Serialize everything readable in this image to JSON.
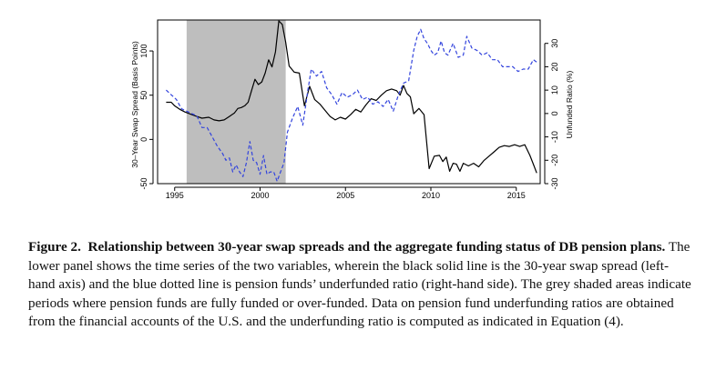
{
  "chart_data": {
    "type": "line",
    "title": "",
    "xlabel": "",
    "xlim": [
      1994.0,
      2016.4
    ],
    "xticks": [
      1995,
      2000,
      2005,
      2010,
      2015
    ],
    "xtick_labels": [
      "1995",
      "2000",
      "2005",
      "2010",
      "2015"
    ],
    "left_axis": {
      "label": "30–Year Swap Spread (Basis Points)",
      "ylim": [
        -50,
        135
      ],
      "ticks": [
        -50,
        0,
        50,
        100
      ],
      "tick_labels": [
        "-50",
        "0",
        "50",
        "100"
      ]
    },
    "right_axis": {
      "label": "Unfunded Ratio (%)",
      "ylim": [
        -30,
        40
      ],
      "ticks": [
        -30,
        -20,
        -10,
        0,
        10,
        20,
        30
      ],
      "tick_labels": [
        "-30",
        "-20",
        "-10",
        "0",
        "10",
        "20",
        "30"
      ]
    },
    "shaded_regions": [
      {
        "x0": 1995.7,
        "x1": 2001.5,
        "color": "#bebebe"
      }
    ],
    "series": [
      {
        "name": "30-year swap spread",
        "axis": "left",
        "color": "#000000",
        "style": "solid",
        "x": [
          1994.5,
          1994.8,
          1995.0,
          1995.3,
          1995.6,
          1996.0,
          1996.3,
          1996.6,
          1997.0,
          1997.3,
          1997.6,
          1997.9,
          1998.2,
          1998.5,
          1998.7,
          1998.9,
          1999.1,
          1999.3,
          1999.5,
          1999.7,
          1999.9,
          2000.1,
          2000.3,
          2000.5,
          2000.7,
          2000.9,
          2001.1,
          2001.3,
          2001.5,
          2001.7,
          2002.0,
          2002.3,
          2002.6,
          2002.9,
          2003.2,
          2003.5,
          2003.8,
          2004.1,
          2004.4,
          2004.7,
          2005.0,
          2005.3,
          2005.6,
          2005.9,
          2006.2,
          2006.5,
          2006.8,
          2007.1,
          2007.4,
          2007.7,
          2008.0,
          2008.2,
          2008.4,
          2008.6,
          2008.8,
          2009.0,
          2009.3,
          2009.6,
          2009.9,
          2010.2,
          2010.5,
          2010.7,
          2010.9,
          2011.1,
          2011.3,
          2011.5,
          2011.7,
          2011.9,
          2012.2,
          2012.5,
          2012.8,
          2013.1,
          2013.4,
          2013.7,
          2014.0,
          2014.3,
          2014.6,
          2014.9,
          2015.2,
          2015.5,
          2015.8,
          2016.0,
          2016.2
        ],
        "values": [
          42,
          42,
          38,
          34,
          31,
          28,
          26,
          24,
          25,
          22,
          21,
          22,
          26,
          30,
          35,
          36,
          38,
          42,
          55,
          68,
          62,
          65,
          75,
          90,
          82,
          99,
          134,
          130,
          110,
          83,
          76,
          75,
          38,
          60,
          45,
          40,
          33,
          26,
          22,
          25,
          23,
          28,
          34,
          31,
          39,
          46,
          44,
          50,
          55,
          57,
          55,
          50,
          61,
          52,
          48,
          29,
          35,
          28,
          -33,
          -19,
          -18,
          -25,
          -20,
          -36,
          -27,
          -28,
          -36,
          -27,
          -30,
          -27,
          -31,
          -24,
          -19,
          -14,
          -9,
          -7,
          -8,
          -6,
          -8,
          -6,
          -18,
          -28,
          -38
        ]
      },
      {
        "name": "Underfunded ratio",
        "axis": "right",
        "color": "#3344dd",
        "style": "dashed",
        "x": [
          1994.5,
          1994.8,
          1995.1,
          1995.4,
          1995.7,
          1996.0,
          1996.3,
          1996.6,
          1996.9,
          1997.2,
          1997.5,
          1997.8,
          1998.0,
          1998.2,
          1998.4,
          1998.6,
          1998.8,
          1999.0,
          1999.2,
          1999.4,
          1999.6,
          1999.8,
          2000.0,
          2000.2,
          2000.4,
          2000.6,
          2000.8,
          2001.0,
          2001.2,
          2001.4,
          2001.6,
          2001.9,
          2002.2,
          2002.5,
          2002.8,
          2003.0,
          2003.3,
          2003.6,
          2003.9,
          2004.2,
          2004.5,
          2004.8,
          2005.1,
          2005.4,
          2005.7,
          2006.0,
          2006.3,
          2006.6,
          2006.9,
          2007.2,
          2007.5,
          2007.8,
          2008.1,
          2008.4,
          2008.7,
          2009.0,
          2009.2,
          2009.4,
          2009.6,
          2009.8,
          2010.0,
          2010.2,
          2010.4,
          2010.6,
          2010.8,
          2011.0,
          2011.3,
          2011.6,
          2011.9,
          2012.1,
          2012.4,
          2012.7,
          2013.0,
          2013.3,
          2013.6,
          2013.9,
          2014.2,
          2014.5,
          2014.8,
          2015.1,
          2015.4,
          2015.7,
          2016.0,
          2016.2
        ],
        "values": [
          10,
          8,
          6,
          2,
          1,
          0,
          -1,
          -6,
          -6,
          -10,
          -14,
          -17,
          -20,
          -19,
          -25,
          -22,
          -25,
          -27,
          -21,
          -12,
          -20,
          -21,
          -26,
          -18,
          -26,
          -25,
          -25,
          -29,
          -25,
          -21,
          -8,
          -2,
          3,
          -5,
          10,
          19,
          16,
          18,
          11,
          8,
          4,
          9,
          7,
          8,
          10,
          6,
          7,
          4,
          5,
          3,
          6,
          1,
          8,
          13,
          14,
          27,
          33,
          36,
          32,
          30,
          27,
          25,
          26,
          31,
          26,
          25,
          30,
          24,
          25,
          33,
          28,
          27,
          25,
          26,
          23,
          23,
          20,
          20,
          20,
          18,
          19,
          19,
          23,
          22
        ]
      }
    ]
  },
  "caption": {
    "label": "Figure 2.",
    "bold_title": "Relationship between 30-year swap spreads and the aggregate funding status of DB pension plans.",
    "body": "The lower panel shows the time series of the two variables, wherein the black solid line is the 30-year swap spread (left-hand axis) and the blue dotted line is pension funds’ underfunded ratio (right-hand side). The grey shaded areas indicate periods where pension funds are fully funded or over-funded. Data on pension fund underfunding ratios are obtained from the financial accounts of the U.S. and the underfunding ratio is computed as indicated in Equation (4)."
  }
}
